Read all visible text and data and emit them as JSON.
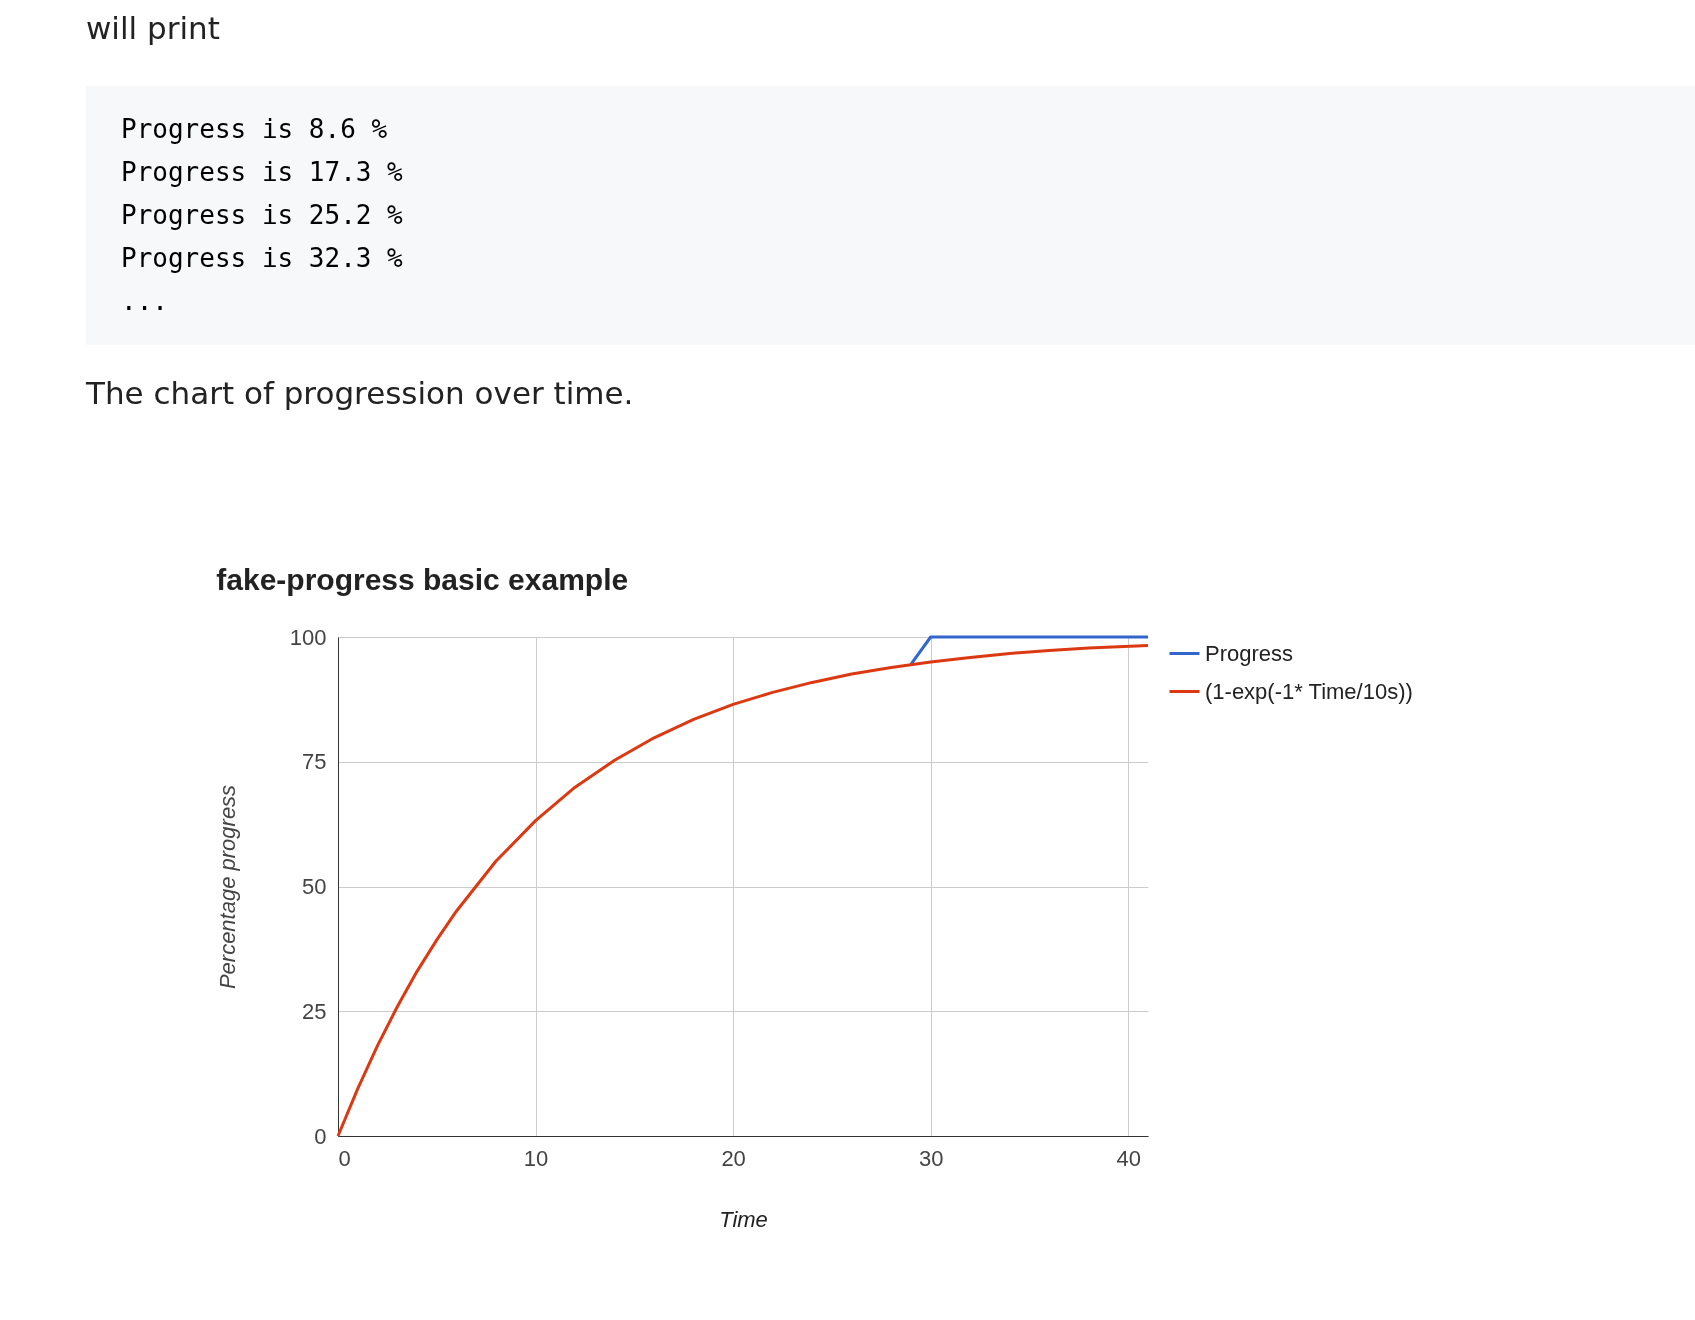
{
  "chart_data": {
    "type": "line",
    "title": "fake-progress basic example",
    "xlabel": "Time",
    "ylabel": "Percentage progress",
    "annotations": [
      "will print",
      "Progress is 8.6 %",
      "Progress is 17.3 %",
      "Progress is 25.2 %",
      "Progress is 32.3 %",
      "...",
      "The chart of progression over time."
    ],
    "series": [
      {
        "name": "Progress",
        "color": "#3366cc",
        "x": [
          29,
          30,
          41
        ],
        "values": [
          94.5,
          100,
          100
        ]
      },
      {
        "name": "(1-exp(-1* Time/10s))",
        "color": "#dc3912",
        "x": [
          0,
          1,
          2,
          3,
          4,
          5,
          6,
          8,
          10,
          12,
          14,
          16,
          18,
          20,
          22,
          24,
          26,
          28,
          30,
          32,
          34,
          36,
          38,
          41
        ],
        "values": [
          0,
          9.5,
          18.1,
          25.9,
          33,
          39.3,
          45.1,
          55.1,
          63.2,
          69.9,
          75.3,
          79.8,
          83.5,
          86.5,
          88.9,
          90.9,
          92.6,
          93.9,
          95,
          95.9,
          96.7,
          97.3,
          97.8,
          98.3
        ]
      }
    ],
    "xlim": [
      0,
      41
    ],
    "xticks": [
      0,
      10,
      20,
      30,
      40
    ],
    "ylim": [
      0,
      100
    ],
    "yticks": [
      0,
      25,
      50,
      75,
      100
    ],
    "grid": true,
    "legend": "right",
    "marker": "none",
    "line_style": "solid"
  }
}
